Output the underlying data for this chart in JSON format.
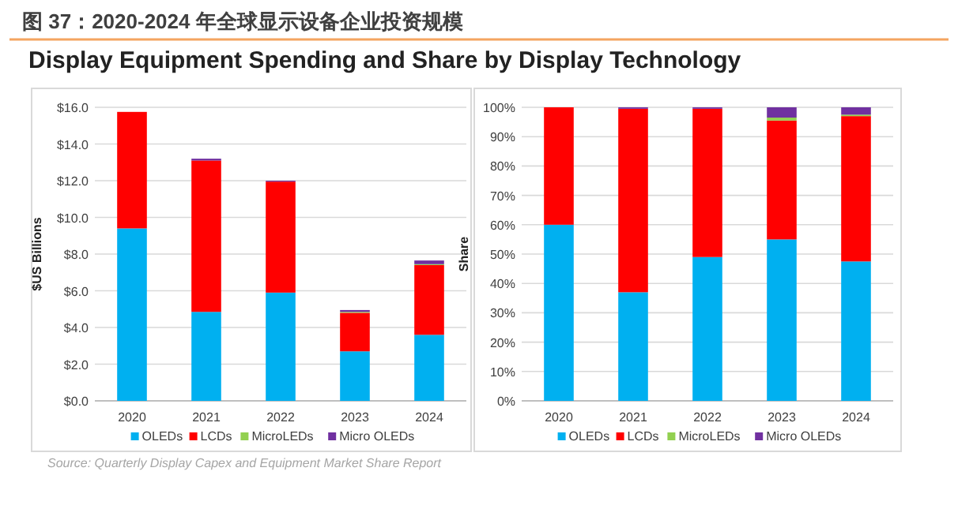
{
  "chart_data": [
    {
      "type": "bar",
      "title": "图 37：2020-2024 年全球显示设备企业投资规模",
      "subtitle": "Display Equipment Spending and Share by Display Technology",
      "ylabel": "$US Billions",
      "stacked": true,
      "categories": [
        "2020",
        "2021",
        "2022",
        "2023",
        "2024"
      ],
      "series": [
        {
          "name": "OLEDs",
          "color": "#00b0f0",
          "values": [
            9.4,
            4.85,
            5.9,
            2.7,
            3.6
          ]
        },
        {
          "name": "LCDs",
          "color": "#ff0000",
          "values": [
            6.35,
            8.25,
            6.05,
            2.1,
            3.8
          ]
        },
        {
          "name": "MicroLEDs",
          "color": "#92d050",
          "values": [
            0,
            0,
            0,
            0.05,
            0.05
          ]
        },
        {
          "name": "Micro OLEDs",
          "color": "#7030a0",
          "values": [
            0,
            0.1,
            0.05,
            0.1,
            0.2
          ]
        }
      ],
      "ylim": [
        0,
        16
      ],
      "yticks": [
        {
          "value": 0,
          "label": "$0.0"
        },
        {
          "value": 2,
          "label": "$2.0"
        },
        {
          "value": 4,
          "label": "$4.0"
        },
        {
          "value": 6,
          "label": "$6.0"
        },
        {
          "value": 8,
          "label": "$8.0"
        },
        {
          "value": 10,
          "label": "$10.0"
        },
        {
          "value": 12,
          "label": "$12.0"
        },
        {
          "value": 14,
          "label": "$14.0"
        },
        {
          "value": 16,
          "label": "$16.0"
        }
      ],
      "grid": "y",
      "legend": "bottom",
      "annotations": [
        "Source: Quarterly Display Capex and Equipment Market Share Report"
      ]
    },
    {
      "type": "bar",
      "ylabel": "Share",
      "stacked": true,
      "categories": [
        "2020",
        "2021",
        "2022",
        "2023",
        "2024"
      ],
      "series": [
        {
          "name": "OLEDs",
          "color": "#00b0f0",
          "values": [
            60,
            37,
            49,
            55,
            47.5
          ]
        },
        {
          "name": "LCDs",
          "color": "#ff0000",
          "values": [
            40,
            62.5,
            50.5,
            40.5,
            49.5
          ]
        },
        {
          "name": "MicroLEDs",
          "color": "#92d050",
          "values": [
            0,
            0,
            0,
            1,
            0.5
          ]
        },
        {
          "name": "Micro OLEDs",
          "color": "#7030a0",
          "values": [
            0,
            0.5,
            0.5,
            3.5,
            2.5
          ]
        }
      ],
      "ylim": [
        0,
        100
      ],
      "yticks": [
        {
          "value": 0,
          "label": "0%"
        },
        {
          "value": 10,
          "label": "10%"
        },
        {
          "value": 20,
          "label": "20%"
        },
        {
          "value": 30,
          "label": "30%"
        },
        {
          "value": 40,
          "label": "40%"
        },
        {
          "value": 50,
          "label": "50%"
        },
        {
          "value": 60,
          "label": "60%"
        },
        {
          "value": 70,
          "label": "70%"
        },
        {
          "value": 80,
          "label": "80%"
        },
        {
          "value": 90,
          "label": "90%"
        },
        {
          "value": 100,
          "label": "100%"
        }
      ],
      "grid": "y",
      "legend": "bottom"
    }
  ]
}
